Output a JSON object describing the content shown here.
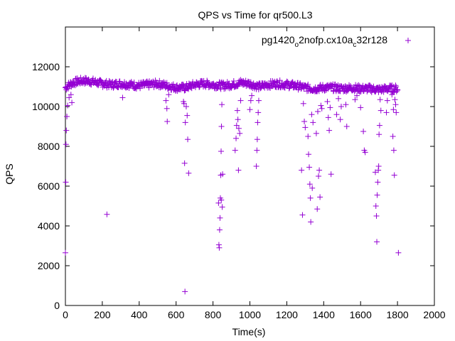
{
  "chart_data": {
    "type": "scatter",
    "title": "QPS vs Time for qr500.L3",
    "xlabel": "Time(s)",
    "ylabel": "QPS",
    "xlim": [
      0,
      2000
    ],
    "ylim": [
      0,
      14000
    ],
    "xticks": [
      0,
      200,
      400,
      600,
      800,
      1000,
      1200,
      1400,
      1600,
      1800,
      2000
    ],
    "yticks": [
      0,
      2000,
      4000,
      6000,
      8000,
      10000,
      12000
    ],
    "xtick_labels": [
      "0",
      "200",
      "400",
      "600",
      "800",
      "1000",
      "1200",
      "1400",
      "1600",
      "1800",
      "2000"
    ],
    "ytick_labels": [
      "0",
      "2000",
      "4000",
      "6000",
      "8000",
      "10000",
      "12000"
    ],
    "marker_color": "#9400d3",
    "legend": {
      "position": "top-right",
      "base": "pg1420",
      "sub1": "o",
      "mid": "2nofp.cx10a",
      "sub2": "c",
      "tail": "32r128"
    },
    "series": [
      {
        "name": "pg1420_o2nofp.cx10a_c32r128",
        "baseline": [
          [
            0,
            10950
          ],
          [
            30,
            11150
          ],
          [
            60,
            11250
          ],
          [
            100,
            11300
          ],
          [
            150,
            11250
          ],
          [
            200,
            11150
          ],
          [
            250,
            11100
          ],
          [
            300,
            11150
          ],
          [
            350,
            11100
          ],
          [
            400,
            11050
          ],
          [
            450,
            11100
          ],
          [
            500,
            11150
          ],
          [
            550,
            11050
          ],
          [
            600,
            10950
          ],
          [
            650,
            10950
          ],
          [
            700,
            11100
          ],
          [
            750,
            11150
          ],
          [
            800,
            11100
          ],
          [
            850,
            11050
          ],
          [
            900,
            11100
          ],
          [
            950,
            11200
          ],
          [
            1000,
            11150
          ],
          [
            1050,
            11000
          ],
          [
            1100,
            11100
          ],
          [
            1150,
            11150
          ],
          [
            1200,
            11100
          ],
          [
            1250,
            11050
          ],
          [
            1300,
            10950
          ],
          [
            1350,
            10900
          ],
          [
            1400,
            10950
          ],
          [
            1450,
            10950
          ],
          [
            1500,
            10900
          ],
          [
            1550,
            10950
          ],
          [
            1600,
            10900
          ],
          [
            1650,
            10900
          ],
          [
            1700,
            10850
          ],
          [
            1750,
            10900
          ],
          [
            1800,
            10900
          ]
        ],
        "band": 180,
        "outliers": [
          [
            0,
            2650
          ],
          [
            2,
            6200
          ],
          [
            3,
            8100
          ],
          [
            5,
            8800
          ],
          [
            8,
            9500
          ],
          [
            12,
            10050
          ],
          [
            20,
            10450
          ],
          [
            30,
            10600
          ],
          [
            35,
            10200
          ],
          [
            225,
            4580
          ],
          [
            310,
            10450
          ],
          [
            545,
            10300
          ],
          [
            550,
            9900
          ],
          [
            552,
            9250
          ],
          [
            560,
            10600
          ],
          [
            640,
            10250
          ],
          [
            643,
            10150
          ],
          [
            646,
            7150
          ],
          [
            648,
            700
          ],
          [
            650,
            9200
          ],
          [
            655,
            10000
          ],
          [
            660,
            9550
          ],
          [
            663,
            8350
          ],
          [
            668,
            6650
          ],
          [
            830,
            5150
          ],
          [
            832,
            3050
          ],
          [
            834,
            2900
          ],
          [
            836,
            3800
          ],
          [
            838,
            4400
          ],
          [
            840,
            5400
          ],
          [
            842,
            6550
          ],
          [
            844,
            7750
          ],
          [
            846,
            9000
          ],
          [
            848,
            10100
          ],
          [
            850,
            4950
          ],
          [
            845,
            5300
          ],
          [
            852,
            6600
          ],
          [
            920,
            7800
          ],
          [
            925,
            8400
          ],
          [
            928,
            9050
          ],
          [
            932,
            9800
          ],
          [
            935,
            9350
          ],
          [
            938,
            6800
          ],
          [
            940,
            8900
          ],
          [
            945,
            8650
          ],
          [
            950,
            10300
          ],
          [
            1000,
            9850
          ],
          [
            1005,
            10300
          ],
          [
            1010,
            10550
          ],
          [
            1035,
            7000
          ],
          [
            1038,
            7800
          ],
          [
            1040,
            8350
          ],
          [
            1042,
            9200
          ],
          [
            1045,
            9700
          ],
          [
            1048,
            10300
          ],
          [
            1280,
            6800
          ],
          [
            1285,
            4550
          ],
          [
            1290,
            10150
          ],
          [
            1295,
            9250
          ],
          [
            1300,
            8950
          ],
          [
            1315,
            8500
          ],
          [
            1318,
            7600
          ],
          [
            1322,
            6950
          ],
          [
            1325,
            6100
          ],
          [
            1328,
            5400
          ],
          [
            1330,
            4200
          ],
          [
            1335,
            9600
          ],
          [
            1338,
            5900
          ],
          [
            1342,
            9200
          ],
          [
            1360,
            8650
          ],
          [
            1365,
            4850
          ],
          [
            1368,
            9750
          ],
          [
            1372,
            6500
          ],
          [
            1376,
            6800
          ],
          [
            1380,
            5450
          ],
          [
            1385,
            10050
          ],
          [
            1390,
            9900
          ],
          [
            1420,
            10250
          ],
          [
            1425,
            9450
          ],
          [
            1430,
            8800
          ],
          [
            1435,
            9950
          ],
          [
            1440,
            6600
          ],
          [
            1470,
            9600
          ],
          [
            1480,
            10400
          ],
          [
            1490,
            9350
          ],
          [
            1495,
            10000
          ],
          [
            1520,
            10100
          ],
          [
            1525,
            9000
          ],
          [
            1530,
            10800
          ],
          [
            1570,
            10350
          ],
          [
            1580,
            10550
          ],
          [
            1600,
            9950
          ],
          [
            1615,
            8750
          ],
          [
            1620,
            7800
          ],
          [
            1625,
            7700
          ],
          [
            1680,
            6700
          ],
          [
            1683,
            5000
          ],
          [
            1686,
            4500
          ],
          [
            1688,
            3200
          ],
          [
            1690,
            5550
          ],
          [
            1693,
            6200
          ],
          [
            1696,
            6800
          ],
          [
            1698,
            7000
          ],
          [
            1700,
            8600
          ],
          [
            1703,
            9050
          ],
          [
            1706,
            10350
          ],
          [
            1710,
            9800
          ],
          [
            1740,
            9700
          ],
          [
            1745,
            10300
          ],
          [
            1770,
            10600
          ],
          [
            1775,
            8500
          ],
          [
            1778,
            9850
          ],
          [
            1780,
            7800
          ],
          [
            1783,
            6550
          ],
          [
            1786,
            10350
          ],
          [
            1790,
            10100
          ],
          [
            1793,
            9700
          ],
          [
            1800,
            10850
          ],
          [
            1805,
            2650
          ]
        ]
      }
    ]
  }
}
